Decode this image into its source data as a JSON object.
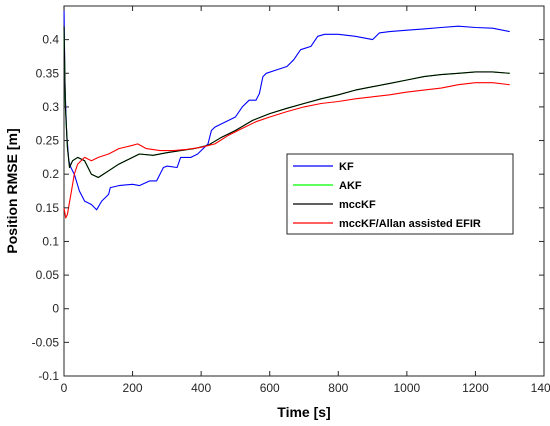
{
  "chart_data": {
    "type": "line",
    "title": "",
    "xlabel": "Time [s]",
    "ylabel": "Position RMSE [m]",
    "xlim": [
      0,
      1400
    ],
    "ylim": [
      -0.1,
      0.45
    ],
    "xticks": [
      0,
      200,
      400,
      600,
      800,
      1000,
      1200,
      1400
    ],
    "yticks": [
      -0.1,
      -0.05,
      0,
      0.05,
      0.1,
      0.15,
      0.2,
      0.25,
      0.3,
      0.35,
      0.4
    ],
    "xtick_labels": [
      "0",
      "200",
      "400",
      "600",
      "800",
      "1000",
      "1200",
      "1400"
    ],
    "ytick_labels": [
      "-0.1",
      "-0.05",
      "0",
      "0.05",
      "0.1",
      "0.15",
      "0.2",
      "0.25",
      "0.3",
      "0.35",
      "0.4"
    ],
    "grid": false,
    "legend_position": "right",
    "series": [
      {
        "name": "KF",
        "color": "#0000ff",
        "x": [
          0,
          3,
          8,
          14,
          20,
          30,
          45,
          60,
          80,
          95,
          110,
          130,
          135,
          160,
          200,
          220,
          250,
          270,
          290,
          300,
          330,
          340,
          370,
          390,
          400,
          420,
          430,
          440,
          460,
          480,
          500,
          520,
          540,
          560,
          570,
          580,
          590,
          620,
          650,
          670,
          690,
          720,
          740,
          760,
          800,
          850,
          900,
          920,
          950,
          1000,
          1050,
          1100,
          1150,
          1200,
          1250,
          1300
        ],
        "y": [
          0.45,
          0.33,
          0.26,
          0.22,
          0.21,
          0.2,
          0.175,
          0.16,
          0.155,
          0.147,
          0.16,
          0.17,
          0.18,
          0.183,
          0.185,
          0.183,
          0.19,
          0.19,
          0.21,
          0.212,
          0.21,
          0.225,
          0.225,
          0.23,
          0.235,
          0.245,
          0.265,
          0.27,
          0.275,
          0.28,
          0.285,
          0.3,
          0.31,
          0.31,
          0.32,
          0.345,
          0.35,
          0.355,
          0.36,
          0.37,
          0.385,
          0.39,
          0.405,
          0.408,
          0.408,
          0.405,
          0.4,
          0.41,
          0.412,
          0.414,
          0.416,
          0.418,
          0.42,
          0.418,
          0.417,
          0.412
        ]
      },
      {
        "name": "AKF",
        "color": "#00ff00",
        "x": [
          0,
          4,
          10,
          16,
          25,
          40,
          60,
          80,
          100,
          130,
          160,
          200,
          220,
          260,
          300,
          340,
          380,
          420,
          460,
          500,
          550,
          600,
          650,
          700,
          750,
          800,
          850,
          900,
          950,
          1000,
          1050,
          1100,
          1150,
          1200,
          1250,
          1300
        ],
        "y": [
          0.42,
          0.3,
          0.24,
          0.21,
          0.22,
          0.225,
          0.22,
          0.2,
          0.195,
          0.205,
          0.215,
          0.225,
          0.23,
          0.228,
          0.232,
          0.235,
          0.238,
          0.243,
          0.255,
          0.265,
          0.28,
          0.29,
          0.298,
          0.305,
          0.312,
          0.318,
          0.325,
          0.33,
          0.335,
          0.34,
          0.345,
          0.348,
          0.35,
          0.352,
          0.352,
          0.35
        ]
      },
      {
        "name": "mccKF",
        "color": "#000000",
        "x": [
          0,
          4,
          10,
          16,
          25,
          40,
          60,
          80,
          100,
          130,
          160,
          200,
          220,
          260,
          300,
          340,
          380,
          420,
          460,
          500,
          550,
          600,
          650,
          700,
          750,
          800,
          850,
          900,
          950,
          1000,
          1050,
          1100,
          1150,
          1200,
          1250,
          1300
        ],
        "y": [
          0.42,
          0.3,
          0.24,
          0.21,
          0.22,
          0.225,
          0.22,
          0.2,
          0.195,
          0.205,
          0.215,
          0.225,
          0.23,
          0.228,
          0.232,
          0.235,
          0.238,
          0.243,
          0.255,
          0.265,
          0.28,
          0.29,
          0.298,
          0.305,
          0.312,
          0.318,
          0.325,
          0.33,
          0.335,
          0.34,
          0.345,
          0.348,
          0.35,
          0.352,
          0.352,
          0.35
        ]
      },
      {
        "name": "mccKF/Allan assisted EFIR",
        "color": "#ff0000",
        "x": [
          0,
          5,
          10,
          15,
          20,
          30,
          40,
          60,
          80,
          100,
          130,
          160,
          200,
          215,
          240,
          280,
          320,
          360,
          400,
          440,
          480,
          520,
          560,
          600,
          650,
          700,
          750,
          800,
          850,
          900,
          950,
          1000,
          1050,
          1100,
          1150,
          1200,
          1250,
          1300
        ],
        "y": [
          0.15,
          0.135,
          0.14,
          0.155,
          0.17,
          0.2,
          0.215,
          0.225,
          0.22,
          0.225,
          0.23,
          0.238,
          0.243,
          0.245,
          0.238,
          0.235,
          0.235,
          0.237,
          0.24,
          0.245,
          0.258,
          0.268,
          0.278,
          0.285,
          0.293,
          0.3,
          0.305,
          0.308,
          0.312,
          0.315,
          0.318,
          0.322,
          0.325,
          0.328,
          0.333,
          0.336,
          0.336,
          0.333
        ]
      }
    ]
  }
}
